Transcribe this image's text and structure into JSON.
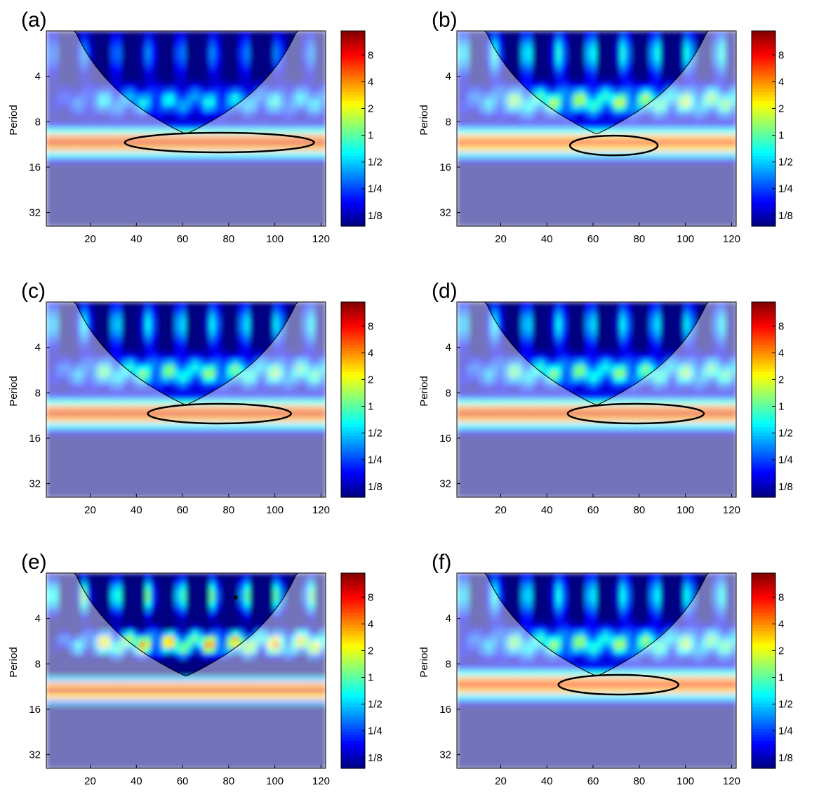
{
  "chart_data": [
    {
      "type": "heatmap",
      "panel_label": "(a)",
      "ylabel": "Period",
      "x_ticks": [
        "20",
        "40",
        "60",
        "80",
        "100",
        "120"
      ],
      "y_ticks": [
        "4",
        "8",
        "16",
        "32"
      ],
      "x_range": [
        1,
        122
      ],
      "y_range_log2": [
        1,
        5.3
      ],
      "colorbar_ticks": [
        "8",
        "4",
        "2",
        "1",
        "1/2",
        "1/4",
        "1/8"
      ],
      "colorbar_range_log2": [
        -4,
        4
      ],
      "band_period": 11,
      "band_power_log2": 3.2,
      "upper_power_log2": -0.5,
      "significance_contours": [
        {
          "x": [
            35,
            117
          ],
          "period": 11
        }
      ]
    },
    {
      "type": "heatmap",
      "panel_label": "(b)",
      "ylabel": "Period",
      "x_ticks": [
        "20",
        "40",
        "60",
        "80",
        "100",
        "120"
      ],
      "y_ticks": [
        "4",
        "8",
        "16",
        "32"
      ],
      "x_range": [
        1,
        122
      ],
      "y_range_log2": [
        1,
        5.3
      ],
      "colorbar_ticks": [
        "8",
        "4",
        "2",
        "1",
        "1/2",
        "1/4",
        "1/8"
      ],
      "colorbar_range_log2": [
        -4,
        4
      ],
      "band_period": 11,
      "band_power_log2": 2.8,
      "upper_power_log2": 1.0,
      "significance_contours": [
        {
          "x": [
            50,
            88
          ],
          "period": 11.5
        }
      ]
    },
    {
      "type": "heatmap",
      "panel_label": "(c)",
      "ylabel": "Period",
      "x_ticks": [
        "20",
        "40",
        "60",
        "80",
        "100",
        "120"
      ],
      "y_ticks": [
        "4",
        "8",
        "16",
        "32"
      ],
      "x_range": [
        1,
        122
      ],
      "y_range_log2": [
        1,
        5.3
      ],
      "colorbar_ticks": [
        "8",
        "4",
        "2",
        "1",
        "1/2",
        "1/4",
        "1/8"
      ],
      "colorbar_range_log2": [
        -4,
        4
      ],
      "band_period": 11,
      "band_power_log2": 3.2,
      "upper_power_log2": 0.6,
      "significance_contours": [
        {
          "x": [
            45,
            107
          ],
          "period": 11
        }
      ]
    },
    {
      "type": "heatmap",
      "panel_label": "(d)",
      "ylabel": "Period",
      "x_ticks": [
        "20",
        "40",
        "60",
        "80",
        "100",
        "120"
      ],
      "y_ticks": [
        "4",
        "8",
        "16",
        "32"
      ],
      "x_range": [
        1,
        122
      ],
      "y_range_log2": [
        1,
        5.3
      ],
      "colorbar_ticks": [
        "8",
        "4",
        "2",
        "1",
        "1/2",
        "1/4",
        "1/8"
      ],
      "colorbar_range_log2": [
        -4,
        4
      ],
      "band_period": 11,
      "band_power_log2": 3.2,
      "upper_power_log2": 0.6,
      "significance_contours": [
        {
          "x": [
            49,
            108
          ],
          "period": 11
        }
      ]
    },
    {
      "type": "heatmap",
      "panel_label": "(e)",
      "ylabel": "Period",
      "x_ticks": [
        "20",
        "40",
        "60",
        "80",
        "100",
        "120"
      ],
      "y_ticks": [
        "4",
        "8",
        "16",
        "32"
      ],
      "x_range": [
        1,
        122
      ],
      "y_range_log2": [
        1,
        5.3
      ],
      "colorbar_ticks": [
        "8",
        "4",
        "2",
        "1",
        "1/2",
        "1/4",
        "1/8"
      ],
      "colorbar_range_log2": [
        -3,
        3
      ],
      "band_period": 12,
      "band_power_log2": 2.4,
      "upper_power_log2": 1.8,
      "significance_contours": [],
      "markers": [
        {
          "x": 83,
          "period": 2.9
        }
      ]
    },
    {
      "type": "heatmap",
      "panel_label": "(f)",
      "ylabel": "Period",
      "x_ticks": [
        "20",
        "40",
        "60",
        "80",
        "100",
        "120"
      ],
      "y_ticks": [
        "4",
        "8",
        "16",
        "32"
      ],
      "x_range": [
        1,
        122
      ],
      "y_range_log2": [
        1,
        5.3
      ],
      "colorbar_ticks": [
        "8",
        "4",
        "2",
        "1",
        "1/2",
        "1/4",
        "1/8"
      ],
      "colorbar_range_log2": [
        -4,
        4
      ],
      "band_period": 11,
      "band_power_log2": 3.0,
      "upper_power_log2": 0.8,
      "significance_contours": [
        {
          "x": [
            45,
            97
          ],
          "period": 11
        }
      ]
    }
  ]
}
